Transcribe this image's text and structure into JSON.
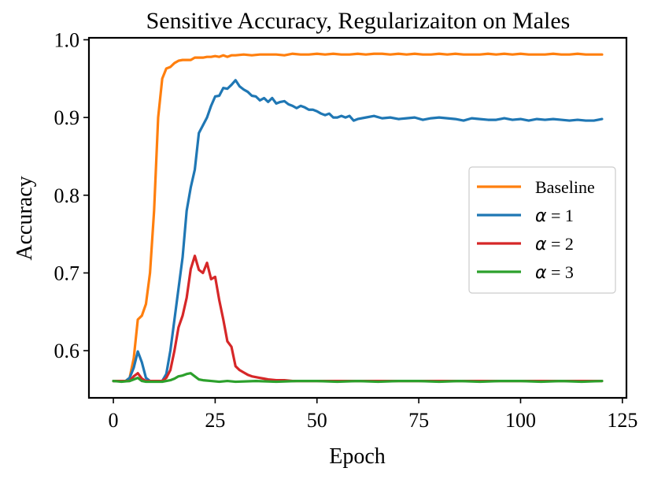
{
  "chart_data": {
    "type": "line",
    "title": "Sensitive Accuracy, Regularizaiton on Males",
    "xlabel": "Epoch",
    "ylabel": "Accuracy",
    "xlim": [
      -6,
      126
    ],
    "ylim": [
      0.5393,
      1.0025
    ],
    "xticks": [
      0,
      25,
      50,
      75,
      100,
      125
    ],
    "xtick_labels": [
      "0",
      "25",
      "50",
      "75",
      "100",
      "125"
    ],
    "yticks": [
      0.6,
      0.7,
      0.8,
      0.9,
      1.0
    ],
    "ytick_labels": [
      "0.6",
      "0.7",
      "0.8",
      "0.9",
      "1.0"
    ],
    "grid": false,
    "legend_position": "center-right",
    "series": [
      {
        "name": "Baseline",
        "label_prefix": "",
        "label_text": "Baseline",
        "color": "#ff7f0e",
        "x": [
          0,
          1,
          2,
          3,
          4,
          5,
          6,
          7,
          8,
          9,
          10,
          11,
          12,
          13,
          14,
          15,
          16,
          17,
          18,
          19,
          20,
          21,
          22,
          23,
          24,
          25,
          26,
          27,
          28,
          29,
          30,
          32,
          34,
          36,
          38,
          40,
          42,
          44,
          46,
          48,
          50,
          52,
          54,
          56,
          58,
          60,
          62,
          64,
          66,
          68,
          70,
          72,
          74,
          76,
          78,
          80,
          82,
          84,
          86,
          88,
          90,
          92,
          94,
          96,
          98,
          100,
          102,
          104,
          106,
          108,
          110,
          112,
          114,
          116,
          118,
          120
        ],
        "values": [
          0.561,
          0.561,
          0.561,
          0.561,
          0.565,
          0.59,
          0.64,
          0.645,
          0.66,
          0.7,
          0.78,
          0.9,
          0.95,
          0.963,
          0.965,
          0.97,
          0.973,
          0.974,
          0.974,
          0.974,
          0.977,
          0.977,
          0.977,
          0.978,
          0.978,
          0.979,
          0.978,
          0.98,
          0.978,
          0.98,
          0.98,
          0.981,
          0.98,
          0.981,
          0.981,
          0.981,
          0.98,
          0.982,
          0.981,
          0.981,
          0.982,
          0.981,
          0.982,
          0.981,
          0.981,
          0.982,
          0.981,
          0.982,
          0.982,
          0.981,
          0.982,
          0.981,
          0.982,
          0.981,
          0.981,
          0.982,
          0.981,
          0.982,
          0.981,
          0.981,
          0.981,
          0.982,
          0.981,
          0.982,
          0.981,
          0.982,
          0.981,
          0.981,
          0.981,
          0.982,
          0.981,
          0.981,
          0.982,
          0.981,
          0.981,
          0.981
        ]
      },
      {
        "name": "α = 1",
        "label_prefix": "α",
        "label_text": " = 1",
        "color": "#1f77b4",
        "x": [
          0,
          1,
          2,
          3,
          4,
          5,
          6,
          7,
          8,
          9,
          10,
          11,
          12,
          13,
          14,
          15,
          16,
          17,
          18,
          19,
          20,
          21,
          22,
          23,
          24,
          25,
          26,
          27,
          28,
          29,
          30,
          31,
          32,
          33,
          34,
          35,
          36,
          37,
          38,
          39,
          40,
          41,
          42,
          43,
          44,
          45,
          46,
          47,
          48,
          49,
          50,
          51,
          52,
          53,
          54,
          55,
          56,
          57,
          58,
          59,
          60,
          62,
          64,
          66,
          68,
          70,
          72,
          74,
          76,
          78,
          80,
          82,
          84,
          86,
          88,
          90,
          92,
          94,
          96,
          98,
          100,
          102,
          104,
          106,
          108,
          110,
          112,
          114,
          116,
          118,
          120
        ],
        "values": [
          0.561,
          0.561,
          0.561,
          0.561,
          0.565,
          0.578,
          0.599,
          0.585,
          0.565,
          0.561,
          0.561,
          0.561,
          0.561,
          0.57,
          0.6,
          0.64,
          0.68,
          0.72,
          0.78,
          0.81,
          0.833,
          0.88,
          0.89,
          0.9,
          0.915,
          0.927,
          0.928,
          0.938,
          0.937,
          0.942,
          0.948,
          0.94,
          0.936,
          0.933,
          0.928,
          0.927,
          0.922,
          0.925,
          0.92,
          0.925,
          0.918,
          0.92,
          0.921,
          0.917,
          0.915,
          0.912,
          0.915,
          0.913,
          0.91,
          0.91,
          0.908,
          0.905,
          0.903,
          0.905,
          0.9,
          0.9,
          0.902,
          0.9,
          0.902,
          0.896,
          0.898,
          0.9,
          0.902,
          0.899,
          0.9,
          0.898,
          0.899,
          0.9,
          0.897,
          0.899,
          0.9,
          0.899,
          0.898,
          0.896,
          0.899,
          0.898,
          0.897,
          0.897,
          0.899,
          0.897,
          0.898,
          0.896,
          0.898,
          0.897,
          0.898,
          0.897,
          0.896,
          0.897,
          0.896,
          0.896,
          0.898
        ]
      },
      {
        "name": "α = 2",
        "label_prefix": "α",
        "label_text": " = 2",
        "color": "#d62728",
        "x": [
          0,
          2,
          4,
          5,
          6,
          7,
          8,
          9,
          10,
          11,
          12,
          13,
          14,
          15,
          16,
          17,
          18,
          19,
          20,
          21,
          22,
          23,
          24,
          25,
          26,
          27,
          28,
          29,
          30,
          31,
          32,
          33,
          34,
          35,
          36,
          37,
          38,
          40,
          42,
          44,
          46,
          50,
          55,
          60,
          70,
          80,
          90,
          100,
          110,
          120
        ],
        "values": [
          0.561,
          0.561,
          0.561,
          0.567,
          0.571,
          0.564,
          0.561,
          0.561,
          0.561,
          0.561,
          0.561,
          0.565,
          0.575,
          0.6,
          0.63,
          0.645,
          0.668,
          0.705,
          0.722,
          0.704,
          0.7,
          0.713,
          0.692,
          0.695,
          0.665,
          0.64,
          0.612,
          0.605,
          0.58,
          0.575,
          0.572,
          0.569,
          0.567,
          0.566,
          0.565,
          0.564,
          0.563,
          0.562,
          0.562,
          0.561,
          0.561,
          0.561,
          0.561,
          0.561,
          0.561,
          0.561,
          0.561,
          0.561,
          0.561,
          0.561
        ]
      },
      {
        "name": "α = 3",
        "label_prefix": "α",
        "label_text": " = 3",
        "color": "#2ca02c",
        "x": [
          0,
          2,
          4,
          5,
          6,
          7,
          8,
          10,
          12,
          14,
          15,
          16,
          17,
          18,
          19,
          20,
          21,
          22,
          24,
          26,
          28,
          30,
          35,
          40,
          45,
          50,
          55,
          60,
          65,
          70,
          75,
          80,
          85,
          90,
          95,
          100,
          105,
          110,
          115,
          120
        ],
        "values": [
          0.561,
          0.56,
          0.561,
          0.563,
          0.565,
          0.561,
          0.56,
          0.56,
          0.56,
          0.562,
          0.564,
          0.567,
          0.568,
          0.57,
          0.571,
          0.567,
          0.563,
          0.562,
          0.561,
          0.56,
          0.561,
          0.56,
          0.561,
          0.56,
          0.561,
          0.561,
          0.56,
          0.561,
          0.56,
          0.561,
          0.561,
          0.56,
          0.561,
          0.56,
          0.561,
          0.561,
          0.56,
          0.561,
          0.56,
          0.561
        ]
      }
    ]
  }
}
